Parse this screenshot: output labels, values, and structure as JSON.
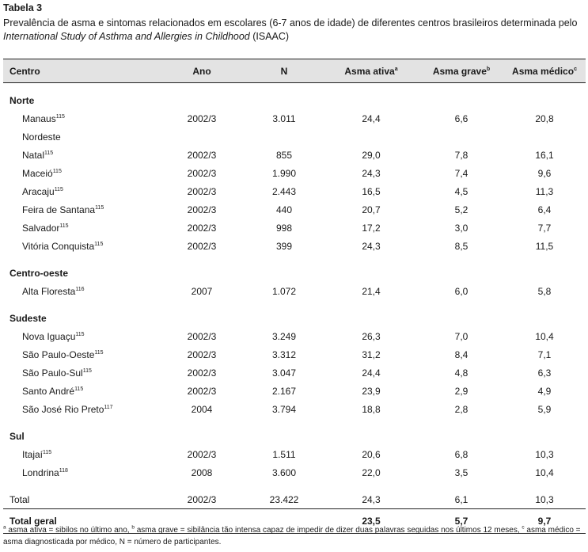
{
  "title": "Tabela 3",
  "caption": {
    "pre": "Prevalência de asma e sintomas relacionados em escolares (6-7 anos de idade) de diferentes centros brasileiros determinada pelo ",
    "italic": "International Study of Asthma and Allergies in Childhood",
    "post": " (ISAAC)"
  },
  "headers": [
    {
      "label": "Centro",
      "sup": ""
    },
    {
      "label": "Ano",
      "sup": ""
    },
    {
      "label": "N",
      "sup": ""
    },
    {
      "label": "Asma ativa",
      "sup": "a"
    },
    {
      "label": "Asma grave",
      "sup": "b"
    },
    {
      "label": "Asma médico",
      "sup": "c"
    }
  ],
  "rows": [
    {
      "kind": "region",
      "name": "Norte"
    },
    {
      "kind": "data",
      "name": "Manaus",
      "ref": "115",
      "ano": "2002/3",
      "n": "3.011",
      "ativa": "24,4",
      "grave": "6,6",
      "medico": "20,8"
    },
    {
      "kind": "subregion",
      "name": "Nordeste"
    },
    {
      "kind": "data",
      "name": "Natal",
      "ref": "115",
      "ano": "2002/3",
      "n": "855",
      "ativa": "29,0",
      "grave": "7,8",
      "medico": "16,1"
    },
    {
      "kind": "data",
      "name": "Maceió",
      "ref": "115",
      "ano": "2002/3",
      "n": "1.990",
      "ativa": "24,3",
      "grave": "7,4",
      "medico": "9,6"
    },
    {
      "kind": "data",
      "name": "Aracaju",
      "ref": "115",
      "ano": "2002/3",
      "n": "2.443",
      "ativa": "16,5",
      "grave": "4,5",
      "medico": "11,3"
    },
    {
      "kind": "data",
      "name": "Feira de Santana",
      "ref": "115",
      "ano": "2002/3",
      "n": "440",
      "ativa": "20,7",
      "grave": "5,2",
      "medico": "6,4"
    },
    {
      "kind": "data",
      "name": "Salvador",
      "ref": "115",
      "ano": "2002/3",
      "n": "998",
      "ativa": "17,2",
      "grave": "3,0",
      "medico": "7,7"
    },
    {
      "kind": "data",
      "name": "Vitória Conquista",
      "ref": "115",
      "ano": "2002/3",
      "n": "399",
      "ativa": "24,3",
      "grave": "8,5",
      "medico": "11,5"
    },
    {
      "kind": "region",
      "name": "Centro-oeste"
    },
    {
      "kind": "data",
      "name": "Alta Floresta",
      "ref": "116",
      "ano": "2007",
      "n": "1.072",
      "ativa": "21,4",
      "grave": "6,0",
      "medico": "5,8"
    },
    {
      "kind": "region",
      "name": "Sudeste"
    },
    {
      "kind": "data",
      "name": "Nova Iguaçu",
      "ref": "115",
      "ano": "2002/3",
      "n": "3.249",
      "ativa": "26,3",
      "grave": "7,0",
      "medico": "10,4"
    },
    {
      "kind": "data",
      "name": "São Paulo-Oeste",
      "ref": "115",
      "ano": "2002/3",
      "n": "3.312",
      "ativa": "31,2",
      "grave": "8,4",
      "medico": "7,1"
    },
    {
      "kind": "data",
      "name": "São Paulo-Sul",
      "ref": "115",
      "ano": "2002/3",
      "n": "3.047",
      "ativa": "24,4",
      "grave": "4,8",
      "medico": "6,3"
    },
    {
      "kind": "data",
      "name": "Santo André",
      "ref": "115",
      "ano": "2002/3",
      "n": "2.167",
      "ativa": "23,9",
      "grave": "2,9",
      "medico": "4,9"
    },
    {
      "kind": "data",
      "name": "São José Rio Preto",
      "ref": "117",
      "ano": "2004",
      "n": "3.794",
      "ativa": "18,8",
      "grave": "2,8",
      "medico": "5,9"
    },
    {
      "kind": "region",
      "name": "Sul"
    },
    {
      "kind": "data",
      "name": "Itajaí",
      "ref": "115",
      "ano": "2002/3",
      "n": "1.511",
      "ativa": "20,6",
      "grave": "6,8",
      "medico": "10,3"
    },
    {
      "kind": "data",
      "name": "Londrina",
      "ref": "118",
      "ano": "2008",
      "n": "3.600",
      "ativa": "22,0",
      "grave": "3,5",
      "medico": "10,4"
    },
    {
      "kind": "total",
      "name": "Total",
      "ref": "",
      "ano": "2002/3",
      "n": "23.422",
      "ativa": "24,3",
      "grave": "6,1",
      "medico": "10,3"
    },
    {
      "kind": "grand",
      "name": "Total geral",
      "ref": "",
      "ano": "",
      "n": "",
      "ativa": "23,5",
      "grave": "5,7",
      "medico": "9,7"
    }
  ],
  "footnote": {
    "a_sup": "a",
    "a_text": " asma ativa = sibilos no último ano, ",
    "b_sup": "b",
    "b_text": " asma grave = sibilância tão intensa capaz de impedir de dizer duas palavras seguidas nos últimos 12 meses, ",
    "c_sup": "c",
    "c_text": " asma médico = asma diagnosticada por médico, N = número de participantes."
  }
}
